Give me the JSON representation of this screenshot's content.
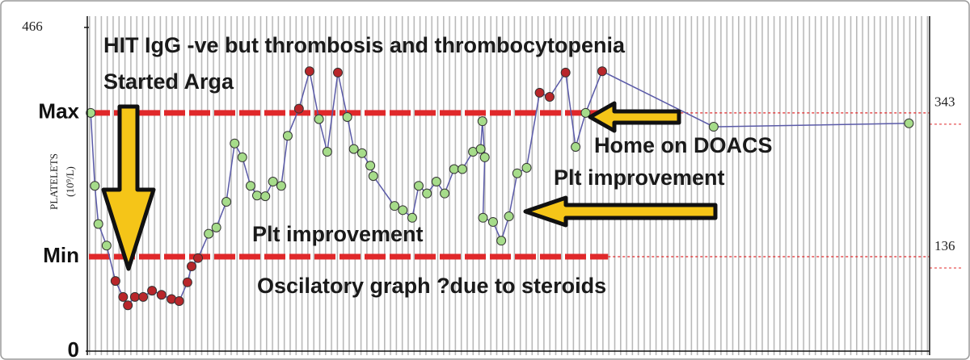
{
  "chart_data": {
    "type": "line",
    "y_label": "PLATELETS",
    "y_label_unit": "(10⁹/L)",
    "ylim": [
      0,
      466
    ],
    "yticks": [
      0,
      {
        "value": 136,
        "label": "Min"
      },
      {
        "value": 343,
        "label": "Max"
      },
      466
    ],
    "y2lim": [
      0,
      466
    ],
    "y2ticks": [
      136,
      343
    ],
    "xlim": [
      0,
      142.5
    ],
    "in_range_color": "#a6dc8a",
    "out_of_range_color": "#b8262a",
    "limit_line_color": "#e0282a",
    "series": [
      {
        "color": "#5a5aa8",
        "x": [
          0.3,
          1.0,
          1.6,
          3.0,
          4.5,
          5.8,
          6.6,
          7.8,
          9.2,
          10.7,
          12.3,
          14.0,
          15.3,
          16.7,
          17.4,
          18.5,
          20.3,
          21.6,
          23.3,
          24.7,
          26.0,
          27.4,
          28.5,
          29.9,
          31.2,
          32.6,
          33.7,
          35.6,
          37.4,
          39.0,
          40.4,
          42.2,
          43.8,
          44.9,
          46.3,
          47.7,
          48.2,
          51.8,
          53.2,
          54.8,
          55.9,
          57.3,
          58.9,
          60.3,
          61.9,
          63.3,
          65.1,
          66.4,
          66.7,
          67.1,
          66.8,
          68.5,
          69.9,
          71.2,
          72.6,
          74.2,
          76.4,
          78.1,
          80.8,
          82.5,
          84.2,
          87.0,
          105.9,
          139.0
        ],
        "values": [
          343,
          238,
          183,
          152,
          101,
          78,
          66,
          78,
          78,
          87,
          81,
          75,
          72,
          99,
          122,
          134,
          169,
          178,
          215,
          299,
          279,
          238,
          224,
          223,
          244,
          238,
          310,
          349,
          403,
          334,
          287,
          401,
          337,
          291,
          285,
          267,
          252,
          209,
          203,
          192,
          238,
          227,
          244,
          227,
          262,
          262,
          287,
          291,
          331,
          279,
          192,
          186,
          159,
          194,
          256,
          264,
          372,
          366,
          401,
          294,
          343,
          403,
          323,
          328
        ]
      }
    ],
    "annotations": [
      "HIT IgG -ve but thrombosis and thrombocytopenia",
      "Started Arga",
      "Home on DOACS",
      "Plt improvement",
      "Plt improvement",
      "Oscilatory graph ?due to steroids"
    ]
  }
}
